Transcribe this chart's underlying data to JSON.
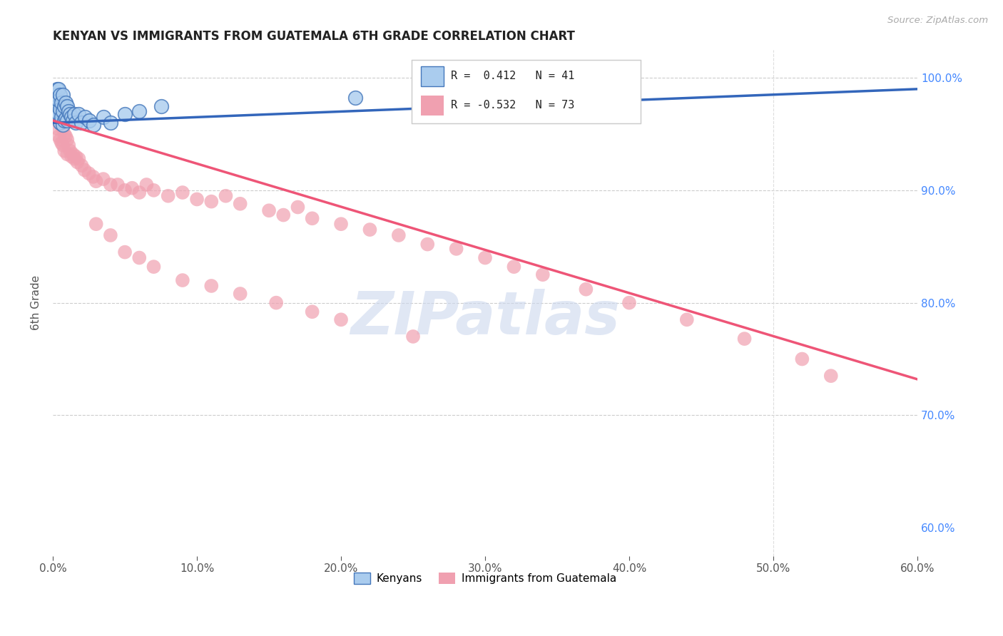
{
  "title": "KENYAN VS IMMIGRANTS FROM GUATEMALA 6TH GRADE CORRELATION CHART",
  "source": "Source: ZipAtlas.com",
  "xlabel_ticks": [
    "0.0%",
    "10.0%",
    "20.0%",
    "30.0%",
    "40.0%",
    "50.0%",
    "60.0%"
  ],
  "ylabel_ticks": [
    "60.0%",
    "70.0%",
    "80.0%",
    "90.0%",
    "100.0%"
  ],
  "ylabel_label": "6th Grade",
  "xmin": 0.0,
  "xmax": 0.6,
  "ymin": 0.575,
  "ymax": 1.025,
  "kenyan_color": "#7ab0e0",
  "kenyan_face_color": "#aaccee",
  "kenyan_edge_color": "#4477bb",
  "guatemala_color": "#f0a0b0",
  "guatemala_edge_color": "none",
  "kenyan_line_color": "#3366bb",
  "guatemala_line_color": "#ee5577",
  "watermark_text": "ZIPatlas",
  "watermark_color": "#ccd8ee",
  "kenyan_points_x": [
    0.001,
    0.002,
    0.002,
    0.003,
    0.003,
    0.003,
    0.004,
    0.004,
    0.004,
    0.005,
    0.005,
    0.005,
    0.006,
    0.006,
    0.007,
    0.007,
    0.007,
    0.008,
    0.008,
    0.009,
    0.009,
    0.01,
    0.01,
    0.011,
    0.012,
    0.013,
    0.014,
    0.015,
    0.016,
    0.018,
    0.02,
    0.022,
    0.025,
    0.028,
    0.035,
    0.04,
    0.05,
    0.06,
    0.075,
    0.21,
    0.27
  ],
  "kenyan_points_y": [
    0.975,
    0.985,
    0.97,
    0.99,
    0.975,
    0.965,
    0.99,
    0.98,
    0.968,
    0.985,
    0.972,
    0.96,
    0.978,
    0.965,
    0.985,
    0.97,
    0.958,
    0.975,
    0.962,
    0.978,
    0.964,
    0.975,
    0.962,
    0.97,
    0.968,
    0.965,
    0.962,
    0.968,
    0.96,
    0.968,
    0.96,
    0.965,
    0.962,
    0.958,
    0.965,
    0.96,
    0.968,
    0.97,
    0.975,
    0.982,
    0.99
  ],
  "guatemala_points_x": [
    0.002,
    0.003,
    0.003,
    0.004,
    0.004,
    0.005,
    0.005,
    0.006,
    0.006,
    0.007,
    0.007,
    0.008,
    0.008,
    0.009,
    0.01,
    0.01,
    0.011,
    0.012,
    0.013,
    0.014,
    0.015,
    0.016,
    0.017,
    0.018,
    0.02,
    0.022,
    0.025,
    0.028,
    0.03,
    0.035,
    0.04,
    0.045,
    0.05,
    0.055,
    0.06,
    0.065,
    0.07,
    0.08,
    0.09,
    0.1,
    0.11,
    0.12,
    0.13,
    0.15,
    0.16,
    0.17,
    0.18,
    0.2,
    0.22,
    0.24,
    0.26,
    0.28,
    0.3,
    0.32,
    0.34,
    0.37,
    0.4,
    0.44,
    0.48,
    0.52,
    0.03,
    0.04,
    0.05,
    0.06,
    0.07,
    0.09,
    0.11,
    0.13,
    0.155,
    0.18,
    0.2,
    0.25,
    0.54
  ],
  "guatemala_points_y": [
    0.97,
    0.965,
    0.955,
    0.968,
    0.948,
    0.96,
    0.945,
    0.958,
    0.942,
    0.955,
    0.94,
    0.95,
    0.935,
    0.948,
    0.945,
    0.932,
    0.94,
    0.935,
    0.93,
    0.932,
    0.928,
    0.93,
    0.925,
    0.928,
    0.922,
    0.918,
    0.915,
    0.912,
    0.908,
    0.91,
    0.905,
    0.905,
    0.9,
    0.902,
    0.898,
    0.905,
    0.9,
    0.895,
    0.898,
    0.892,
    0.89,
    0.895,
    0.888,
    0.882,
    0.878,
    0.885,
    0.875,
    0.87,
    0.865,
    0.86,
    0.852,
    0.848,
    0.84,
    0.832,
    0.825,
    0.812,
    0.8,
    0.785,
    0.768,
    0.75,
    0.87,
    0.86,
    0.845,
    0.84,
    0.832,
    0.82,
    0.815,
    0.808,
    0.8,
    0.792,
    0.785,
    0.77,
    0.735
  ],
  "kenyan_trend_x": [
    0.0,
    0.6
  ],
  "kenyan_trend_y": [
    0.96,
    0.99
  ],
  "guatemala_trend_x": [
    0.0,
    0.6
  ],
  "guatemala_trend_y": [
    0.962,
    0.732
  ]
}
